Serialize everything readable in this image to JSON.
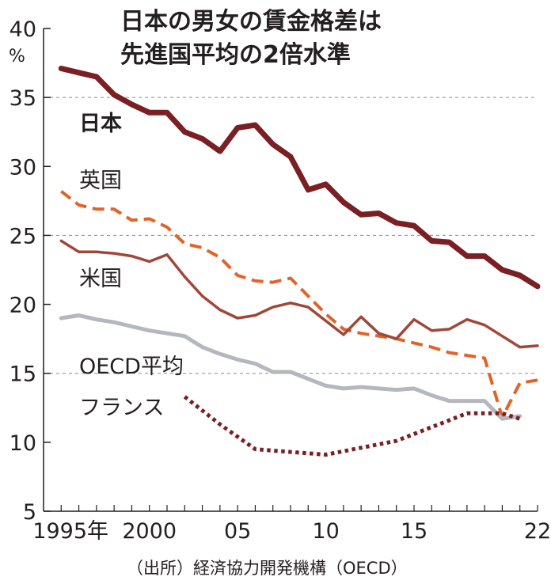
{
  "chart_data": {
    "type": "line",
    "title": [
      "日本の男女の賃金格差は",
      "先進国平均の2倍水準"
    ],
    "unit": "%",
    "source": "（出所）経済協力開発機構（OECD）",
    "ylim": [
      5,
      40
    ],
    "yticks": [
      5,
      10,
      15,
      20,
      25,
      30,
      35,
      40
    ],
    "ytick_labels": [
      "5",
      "10",
      "15",
      "20",
      "25",
      "30",
      "35",
      "40"
    ],
    "dashed_grid": [
      15,
      25,
      35
    ],
    "xlim": [
      1994,
      2022
    ],
    "xticks": [
      {
        "x": 1995,
        "label": "1995年"
      },
      {
        "x": 2000,
        "label": "2000"
      },
      {
        "x": 2005,
        "label": "05"
      },
      {
        "x": 2010,
        "label": "10"
      },
      {
        "x": 2015,
        "label": "15"
      },
      {
        "x": 2022,
        "label": "22"
      }
    ],
    "series": [
      {
        "name": "日本",
        "label_bold": true,
        "color": "#7a1f23",
        "style": "solid",
        "width": 7,
        "x": [
          1995,
          1996,
          1997,
          1998,
          1999,
          2000,
          2001,
          2002,
          2003,
          2004,
          2005,
          2006,
          2007,
          2008,
          2009,
          2010,
          2011,
          2012,
          2013,
          2014,
          2015,
          2016,
          2017,
          2018,
          2019,
          2020,
          2021,
          2022
        ],
        "y": [
          37.1,
          36.8,
          36.5,
          35.2,
          34.5,
          33.9,
          33.9,
          32.5,
          32.0,
          31.1,
          32.8,
          33.0,
          31.6,
          30.7,
          28.3,
          28.7,
          27.4,
          26.5,
          26.6,
          25.9,
          25.7,
          24.6,
          24.5,
          23.5,
          23.5,
          22.5,
          22.1,
          21.3
        ]
      },
      {
        "name": "英国",
        "color": "#e0642a",
        "style": "dashed",
        "width": 4,
        "x": [
          1995,
          1996,
          1997,
          1998,
          1999,
          2000,
          2001,
          2002,
          2003,
          2004,
          2005,
          2006,
          2007,
          2008,
          2009,
          2010,
          2011,
          2012,
          2013,
          2014,
          2015,
          2016,
          2017,
          2018,
          2019,
          2020,
          2021,
          2022
        ],
        "y": [
          28.2,
          27.2,
          26.9,
          26.9,
          26.1,
          26.2,
          25.6,
          24.4,
          24.1,
          23.4,
          22.1,
          21.7,
          21.6,
          21.9,
          20.6,
          19.3,
          18.2,
          17.9,
          17.7,
          17.5,
          17.2,
          16.9,
          16.5,
          16.3,
          16.1,
          11.8,
          14.3,
          14.5
        ]
      },
      {
        "name": "米国",
        "color": "#a0473a",
        "style": "solid",
        "width": 3.5,
        "x": [
          1995,
          1996,
          1997,
          1998,
          1999,
          2000,
          2001,
          2002,
          2003,
          2004,
          2005,
          2006,
          2007,
          2008,
          2009,
          2010,
          2011,
          2012,
          2013,
          2014,
          2015,
          2016,
          2017,
          2018,
          2019,
          2020,
          2021,
          2022
        ],
        "y": [
          24.6,
          23.8,
          23.8,
          23.7,
          23.5,
          23.1,
          23.6,
          22.0,
          20.6,
          19.6,
          19.0,
          19.2,
          19.8,
          20.1,
          19.8,
          18.8,
          17.8,
          19.1,
          17.9,
          17.5,
          18.9,
          18.1,
          18.2,
          18.9,
          18.5,
          17.7,
          16.9,
          17.0
        ]
      },
      {
        "name": "OECD平均",
        "color": "#b4b7bd",
        "style": "solid",
        "width": 5,
        "x": [
          1995,
          1996,
          1997,
          1998,
          1999,
          2000,
          2001,
          2002,
          2003,
          2004,
          2005,
          2006,
          2007,
          2008,
          2009,
          2010,
          2011,
          2012,
          2013,
          2014,
          2015,
          2016,
          2017,
          2018,
          2019,
          2020,
          2021
        ],
        "y": [
          19.0,
          19.2,
          18.9,
          18.7,
          18.4,
          18.1,
          17.9,
          17.7,
          16.9,
          16.4,
          16.0,
          15.7,
          15.1,
          15.1,
          14.6,
          14.1,
          13.9,
          14.0,
          13.9,
          13.8,
          13.9,
          13.4,
          13.0,
          13.0,
          13.0,
          11.7,
          11.9
        ]
      },
      {
        "name": "フランス",
        "color": "#7a1f23",
        "style": "dotted",
        "width": 5,
        "x": [
          2002,
          2004,
          2006,
          2008,
          2010,
          2012,
          2014,
          2016,
          2018,
          2020,
          2021
        ],
        "y": [
          13.3,
          11.3,
          9.5,
          9.3,
          9.1,
          9.6,
          10.1,
          11.1,
          12.1,
          12.1,
          11.7
        ]
      }
    ]
  }
}
